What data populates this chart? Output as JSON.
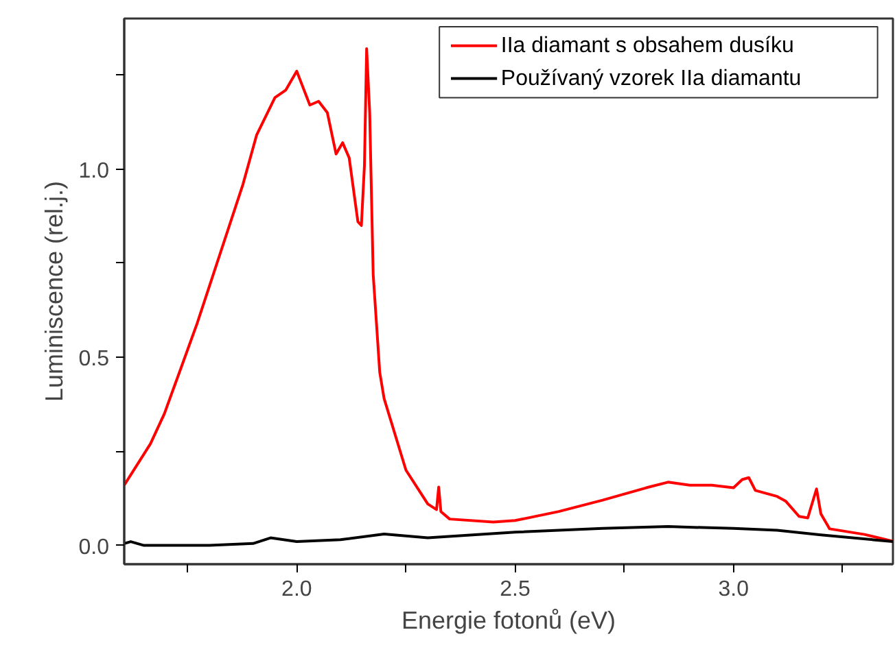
{
  "chart_data": {
    "type": "line",
    "xlabel": "Energie fotonů (eV)",
    "ylabel": "Luminiscence (rel.j.)",
    "xlim": [
      1.605,
      3.365
    ],
    "ylim": [
      -0.05,
      1.4
    ],
    "xticks": [
      {
        "value": 1.75,
        "label": null
      },
      {
        "value": 2.0,
        "label": "2.0"
      },
      {
        "value": 2.25,
        "label": null
      },
      {
        "value": 2.5,
        "label": "2.5"
      },
      {
        "value": 2.75,
        "label": null
      },
      {
        "value": 3.0,
        "label": "3.0"
      },
      {
        "value": 3.25,
        "label": null
      }
    ],
    "yticks": [
      {
        "value": 0,
        "label": "0.0"
      },
      {
        "value": 0.25,
        "label": null
      },
      {
        "value": 0.5,
        "label": "0.5"
      },
      {
        "value": 0.75,
        "label": null
      },
      {
        "value": 1.0,
        "label": "1.0"
      },
      {
        "value": 1.25,
        "label": null
      }
    ],
    "grid": false,
    "legend": "top right",
    "line_style": "solid",
    "marker": "none",
    "series": [
      {
        "name": "IIa diamant s obsahem dusíku",
        "color": "#ff0000",
        "x": [
          1.605,
          1.665,
          1.697,
          1.772,
          1.877,
          1.908,
          1.95,
          1.975,
          2.0,
          2.03,
          2.05,
          2.07,
          2.09,
          2.105,
          2.12,
          2.14,
          2.148,
          2.155,
          2.16,
          2.167,
          2.175,
          2.19,
          2.2,
          2.25,
          2.3,
          2.32,
          2.325,
          2.33,
          2.35,
          2.45,
          2.5,
          2.6,
          2.7,
          2.8,
          2.85,
          2.9,
          2.95,
          3.0,
          3.02,
          3.035,
          3.05,
          3.1,
          3.12,
          3.15,
          3.17,
          3.19,
          3.2,
          3.22,
          3.3,
          3.365
        ],
        "values": [
          0.16,
          0.27,
          0.35,
          0.59,
          0.96,
          1.09,
          1.19,
          1.21,
          1.26,
          1.17,
          1.18,
          1.15,
          1.04,
          1.07,
          1.03,
          0.86,
          0.85,
          1.01,
          1.32,
          1.15,
          0.72,
          0.46,
          0.39,
          0.2,
          0.11,
          0.095,
          0.155,
          0.09,
          0.07,
          0.062,
          0.066,
          0.09,
          0.12,
          0.153,
          0.168,
          0.16,
          0.16,
          0.153,
          0.175,
          0.18,
          0.146,
          0.13,
          0.117,
          0.077,
          0.073,
          0.15,
          0.084,
          0.044,
          0.029,
          0.011
        ]
      },
      {
        "name": "Používaný vzorek IIa diamantu",
        "color": "#000000",
        "x": [
          1.605,
          1.62,
          1.65,
          1.8,
          1.9,
          1.94,
          2.0,
          2.1,
          2.2,
          2.3,
          2.5,
          2.7,
          2.85,
          3.0,
          3.1,
          3.2,
          3.365
        ],
        "values": [
          0.005,
          0.01,
          0.0,
          0.0,
          0.005,
          0.02,
          0.01,
          0.015,
          0.03,
          0.02,
          0.035,
          0.045,
          0.05,
          0.045,
          0.04,
          0.028,
          0.01
        ]
      }
    ]
  }
}
